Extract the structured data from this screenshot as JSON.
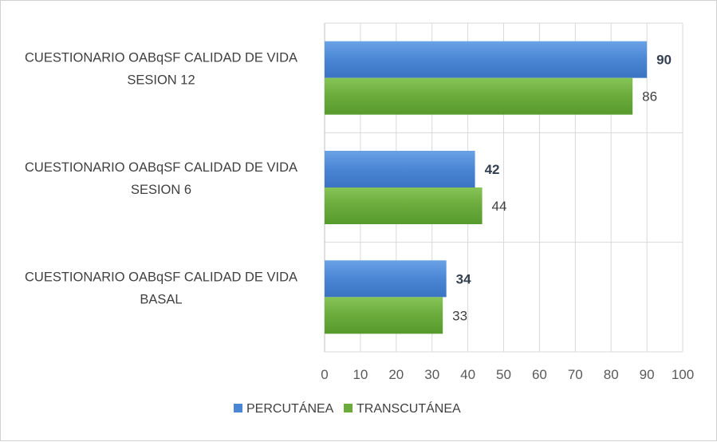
{
  "chart_data": {
    "type": "bar",
    "orientation": "horizontal",
    "categories": [
      [
        "CUESTIONARIO OABqSF CALIDAD DE VIDA",
        "SESION 12"
      ],
      [
        "CUESTIONARIO OABqSF CALIDAD DE VIDA",
        "SESION 6"
      ],
      [
        "CUESTIONARIO OABqSF CALIDAD DE VIDA",
        "BASAL"
      ]
    ],
    "series": [
      {
        "name": "PERCUTÁNEA",
        "values": [
          90,
          42,
          34
        ],
        "color": "#4a86d4",
        "label_bold": true
      },
      {
        "name": "TRANSCUTÁNEA",
        "values": [
          86,
          44,
          33
        ],
        "color": "#6aab3c",
        "label_bold": false
      }
    ],
    "xlim": [
      0,
      100
    ],
    "xticks": [
      "0",
      "10",
      "20",
      "30",
      "40",
      "50",
      "60",
      "70",
      "80",
      "90",
      "100"
    ],
    "grid": true,
    "legend_position": "bottom"
  }
}
